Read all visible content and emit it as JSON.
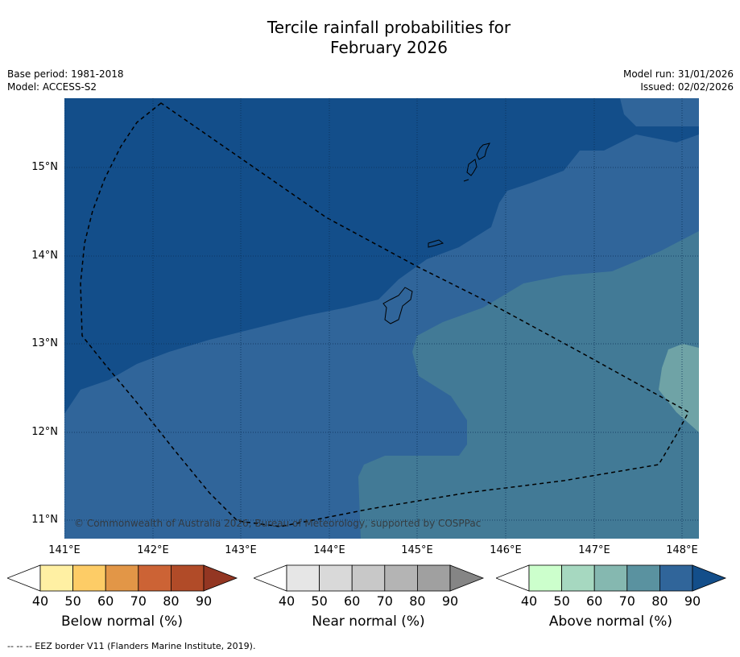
{
  "title_line1": "Tercile rainfall probabilities for",
  "title_line2": "February 2026",
  "meta": {
    "base_period": "Base period: 1981-2018",
    "model": "Model: ACCESS-S2",
    "model_run": "Model run: 31/01/2026",
    "issued": "Issued: 02/02/2026"
  },
  "map": {
    "copyright": "© Commonwealth of Australia 2026, Bureau of Meteorology, supported by COSPPac",
    "lat_labels": [
      "15°N",
      "14°N",
      "13°N",
      "12°N",
      "11°N"
    ],
    "lon_labels": [
      "141°E",
      "142°E",
      "143°E",
      "144°E",
      "145°E",
      "146°E",
      "147°E",
      "148°E"
    ],
    "colors": {
      "above_90": "#134e8a",
      "above_80": "#30659a",
      "above_70": "#427a96",
      "above_60": "#6fa3a6",
      "coast": "#000000",
      "eez": "#000000"
    }
  },
  "colorbars": [
    {
      "label": "Below normal (%)",
      "ticks": [
        "40",
        "50",
        "60",
        "70",
        "80",
        "90"
      ],
      "colors": [
        "#ffffff",
        "#fff0a3",
        "#fdcc66",
        "#e29647",
        "#cc6335",
        "#b14b28",
        "#933622"
      ]
    },
    {
      "label": "Near normal (%)",
      "ticks": [
        "40",
        "50",
        "60",
        "70",
        "80",
        "90"
      ],
      "colors": [
        "#ffffff",
        "#e6e6e6",
        "#d9d9d9",
        "#c8c8c8",
        "#b4b4b4",
        "#a0a0a0",
        "#858585"
      ]
    },
    {
      "label": "Above normal (%)",
      "ticks": [
        "40",
        "50",
        "60",
        "70",
        "80",
        "90"
      ],
      "colors": [
        "#ffffff",
        "#ccffcc",
        "#a6d8c0",
        "#85b8b0",
        "#5a92a0",
        "#30659a",
        "#134e8a"
      ]
    }
  ],
  "footnote": "--  --  -- EEZ border V11 (Flanders Marine Institute, 2019)."
}
